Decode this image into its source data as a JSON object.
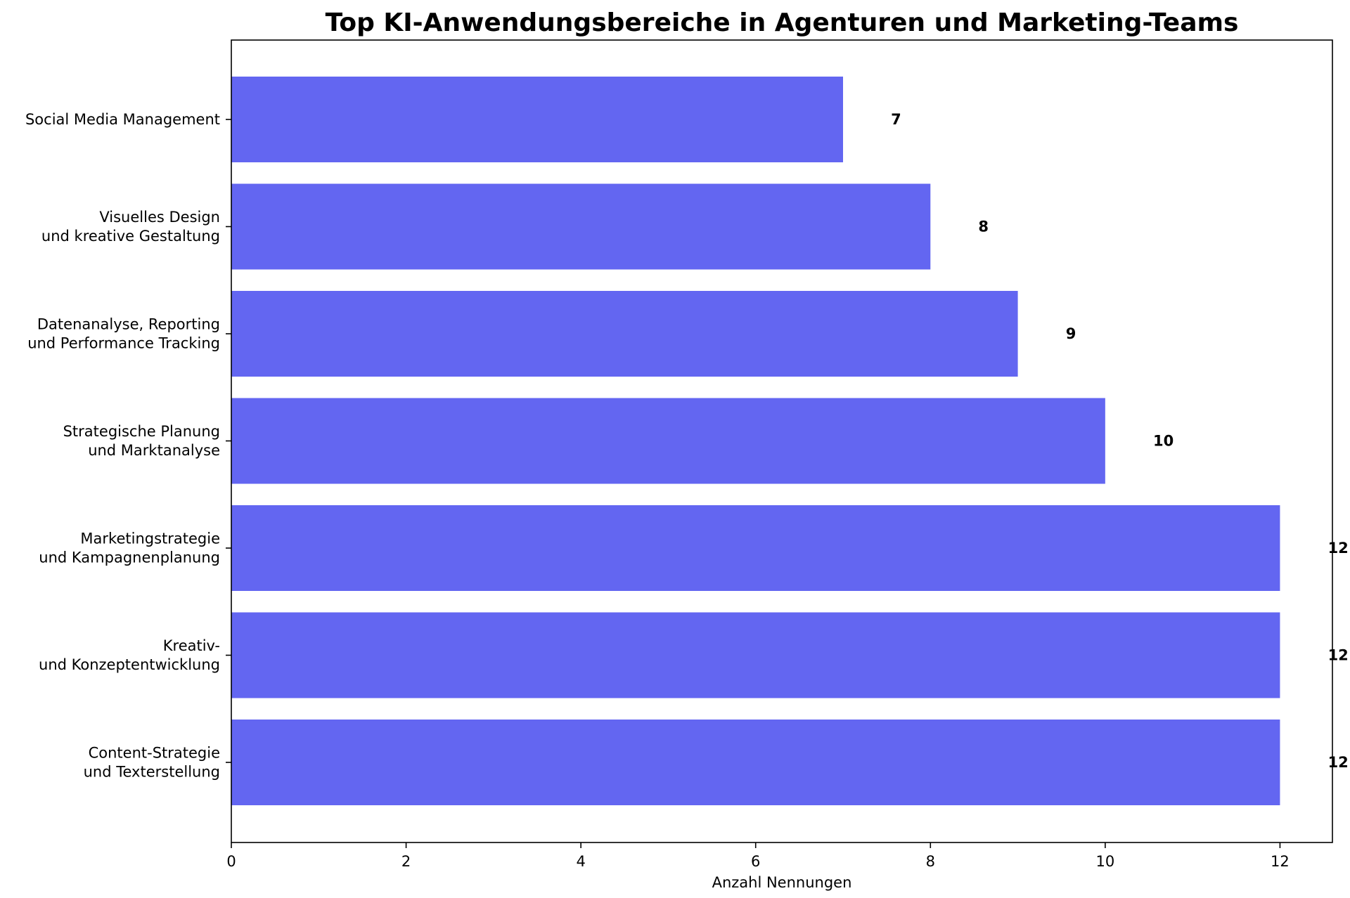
{
  "chart_data": {
    "type": "bar",
    "orientation": "horizontal",
    "title": "Top KI-Anwendungsbereiche in Agenturen und Marketing-Teams",
    "xlabel": "Anzahl Nennungen",
    "ylabel": "",
    "categories": [
      [
        "Content-Strategie",
        "und Texterstellung"
      ],
      [
        "Kreativ-",
        "und Konzeptentwicklung"
      ],
      [
        "Marketingstrategie",
        "und Kampagnenplanung"
      ],
      [
        "Strategische Planung",
        "und Marktanalyse"
      ],
      [
        "Datenanalyse, Reporting",
        "und Performance Tracking"
      ],
      [
        "Visuelles Design",
        "und kreative Gestaltung"
      ],
      [
        "Social Media Management"
      ]
    ],
    "values": [
      12,
      12,
      12,
      10,
      9,
      8,
      7
    ],
    "xlim": [
      0,
      12.6
    ],
    "xticks": [
      0,
      2,
      4,
      6,
      8,
      10,
      12
    ],
    "grid": false,
    "bar_color": "#6366f1"
  }
}
